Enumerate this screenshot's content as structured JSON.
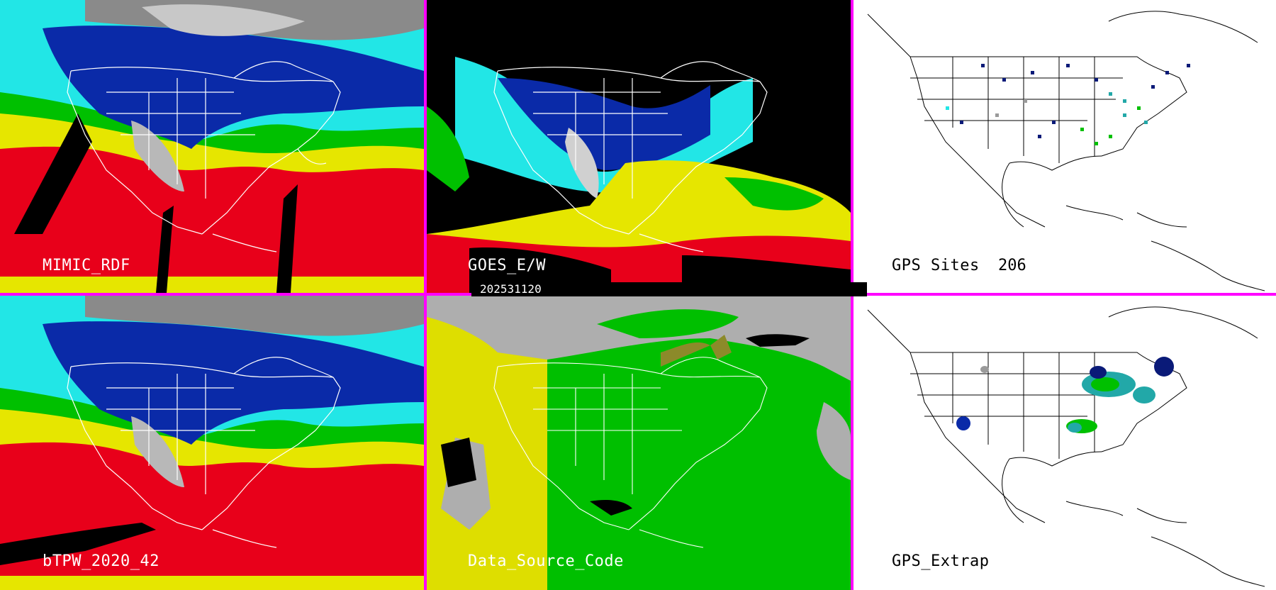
{
  "panels": {
    "mimic": {
      "label": "MIMIC_RDF"
    },
    "goes": {
      "label": "GOES_E/W"
    },
    "gps_sites": {
      "label": "GPS Sites",
      "count": "206"
    },
    "btpw": {
      "label": "bTPW_2020_42"
    },
    "source": {
      "label": "Data_Source_Code"
    },
    "gps_extrap": {
      "label": "GPS_Extrap"
    }
  },
  "timestamp": "202531120",
  "colors": {
    "divider": "#ff00ff",
    "moist_red": "#e8001a",
    "yellow": "#e6e600",
    "green": "#00c000",
    "cyan": "#22e6e6",
    "blue": "#0a2aa8",
    "dark_blue": "#0a1a78",
    "gray": "#b0b0b0",
    "source_gray": "#aeaeae",
    "source_yellow": "#dede00",
    "source_green": "#00bf00",
    "source_olive": "#8c8a2a"
  }
}
